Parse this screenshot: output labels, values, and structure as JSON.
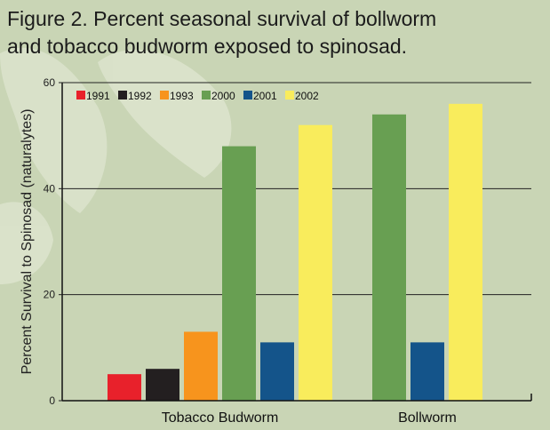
{
  "chart_data": {
    "type": "bar",
    "title_lines": [
      "Figure 2.  Percent seasonal survival of bollworm",
      "and tobacco budworm exposed to spinosad."
    ],
    "xlabel": "",
    "ylabel": "Percent Survival to Spinosad (naturalytes)",
    "ylim": [
      0,
      60
    ],
    "yticks": [
      "0",
      "20",
      "40",
      "60"
    ],
    "grid": true,
    "legend": "top-left",
    "categories": [
      "Tobacco Budworm",
      "Bollworm"
    ],
    "series": [
      {
        "name": "1991",
        "color": "#e8212b",
        "values": [
          5,
          null
        ]
      },
      {
        "name": "1992",
        "color": "#231f20",
        "values": [
          6,
          null
        ]
      },
      {
        "name": "1993",
        "color": "#f7941d",
        "values": [
          13,
          null
        ]
      },
      {
        "name": "2000",
        "color": "#689f52",
        "values": [
          48,
          54
        ]
      },
      {
        "name": "2001",
        "color": "#14548a",
        "values": [
          11,
          11
        ]
      },
      {
        "name": "2002",
        "color": "#f9ec5c",
        "values": [
          52,
          56
        ]
      }
    ]
  }
}
